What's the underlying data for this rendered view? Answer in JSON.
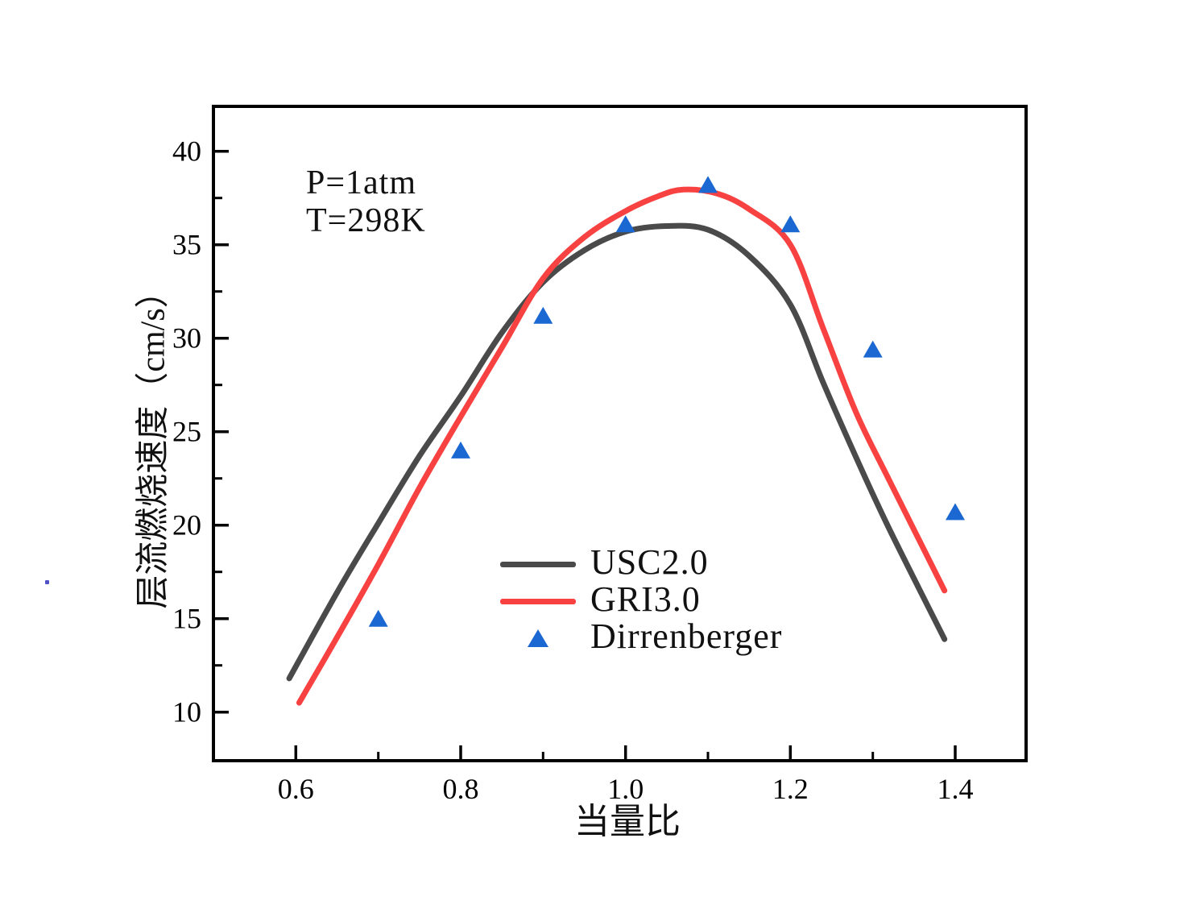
{
  "figure": {
    "background": "#ffffff",
    "axis_color": "#000000"
  },
  "chart_data": {
    "type": "line",
    "title": "",
    "xlabel": "当量比",
    "ylabel": "层流燃烧速度（cm/s）",
    "annotation": {
      "line1": "P=1atm",
      "line2": "T=298K"
    },
    "grid": false,
    "legend_position": "inside-lower-center",
    "x_axis": {
      "min": 0.5,
      "max": 1.486,
      "major_ticks": [
        0.6,
        0.8,
        1.0,
        1.2,
        1.4
      ],
      "tick_labels": [
        "0.6",
        "0.8",
        "1.0",
        "1.2",
        "1.4"
      ],
      "minor_ticks": [
        0.7,
        0.9,
        1.1,
        1.3
      ]
    },
    "y_axis": {
      "min": 7.4,
      "max": 42.4,
      "major_ticks": [
        10,
        15,
        20,
        25,
        30,
        35,
        40
      ],
      "tick_labels": [
        "10",
        "15",
        "20",
        "25",
        "30",
        "35",
        "40"
      ],
      "minor_ticks": [
        12.5,
        17.5,
        22.5,
        27.5,
        32.5,
        37.5
      ]
    },
    "series": [
      {
        "name": "USC2.0",
        "type": "line",
        "color": "#4a4a4a",
        "line_width": 7,
        "points": [
          [
            0.592,
            11.8
          ],
          [
            0.65,
            16.4
          ],
          [
            0.7,
            20.1
          ],
          [
            0.75,
            23.7
          ],
          [
            0.8,
            26.9
          ],
          [
            0.85,
            30.3
          ],
          [
            0.9,
            33.0
          ],
          [
            0.95,
            34.7
          ],
          [
            1.0,
            35.7
          ],
          [
            1.05,
            36.0
          ],
          [
            1.1,
            35.8
          ],
          [
            1.15,
            34.4
          ],
          [
            1.2,
            31.8
          ],
          [
            1.24,
            27.6
          ],
          [
            1.28,
            23.6
          ],
          [
            1.32,
            19.8
          ],
          [
            1.387,
            13.9
          ]
        ]
      },
      {
        "name": "GRI3.0",
        "type": "line",
        "color": "#f84141",
        "line_width": 7,
        "points": [
          [
            0.604,
            10.5
          ],
          [
            0.65,
            14.0
          ],
          [
            0.7,
            17.9
          ],
          [
            0.75,
            22.0
          ],
          [
            0.8,
            25.8
          ],
          [
            0.85,
            29.5
          ],
          [
            0.9,
            33.2
          ],
          [
            0.95,
            35.4
          ],
          [
            1.0,
            36.8
          ],
          [
            1.04,
            37.6
          ],
          [
            1.07,
            37.95
          ],
          [
            1.11,
            37.75
          ],
          [
            1.15,
            36.9
          ],
          [
            1.2,
            35.0
          ],
          [
            1.24,
            30.5
          ],
          [
            1.28,
            26.0
          ],
          [
            1.32,
            22.4
          ],
          [
            1.387,
            16.5
          ]
        ]
      },
      {
        "name": "Dirrenberger",
        "type": "scatter",
        "marker": "triangle-up",
        "color": "#1b68d2",
        "points": [
          [
            0.7,
            15.0
          ],
          [
            0.8,
            24.0
          ],
          [
            0.9,
            31.2
          ],
          [
            1.0,
            36.1
          ],
          [
            1.1,
            38.2
          ],
          [
            1.2,
            36.1
          ],
          [
            1.3,
            29.4
          ],
          [
            1.4,
            20.7
          ]
        ]
      }
    ]
  }
}
